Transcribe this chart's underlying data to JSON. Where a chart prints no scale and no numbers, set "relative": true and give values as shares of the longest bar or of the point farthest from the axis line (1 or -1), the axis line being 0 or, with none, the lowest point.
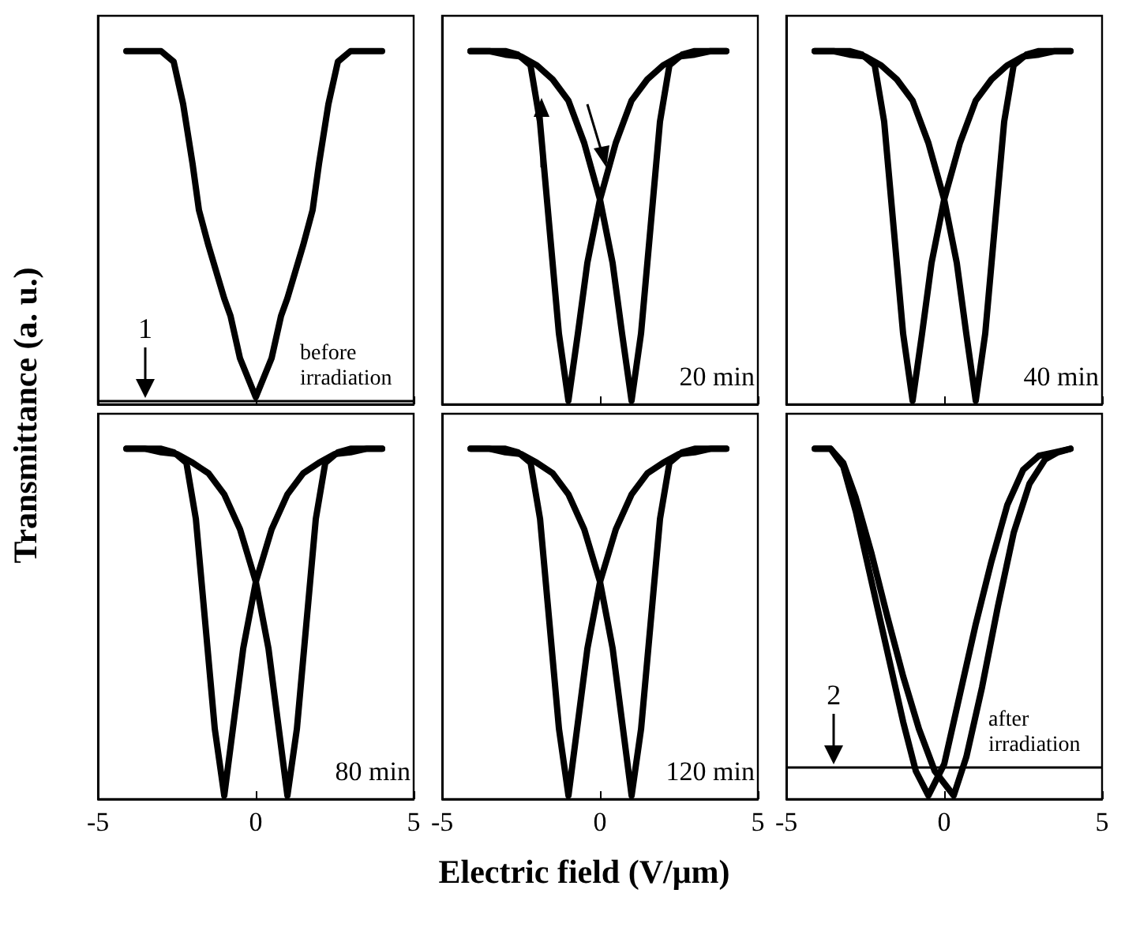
{
  "chart_data": [
    {
      "type": "line",
      "relative": true,
      "xlim": [
        -5,
        5
      ],
      "xticks": [
        -5,
        0,
        5
      ],
      "tick_labels": false,
      "ylabel": "Transmittance (a. u.)",
      "ref_lines": [
        {
          "axis": "y",
          "value": 0.01
        }
      ],
      "annotations": [
        {
          "text": "1",
          "x": -3.5,
          "y": 0.01
        },
        "before irradiation"
      ],
      "series": [
        {
          "color": "#000000",
          "x": [
            -4.1,
            -3.5,
            -3,
            -2.6,
            -2.3,
            -2.0,
            -1.8,
            -1.5,
            -1.0,
            -0.8,
            -0.5,
            0,
            0.5,
            0.8,
            1.0,
            1.5,
            1.8,
            2.0,
            2.3,
            2.6,
            3,
            3.5,
            4.0
          ],
          "values": [
            1,
            1,
            1,
            0.97,
            0.85,
            0.68,
            0.55,
            0.45,
            0.3,
            0.25,
            0.13,
            0.02,
            0.13,
            0.25,
            0.3,
            0.45,
            0.55,
            0.68,
            0.85,
            0.97,
            1,
            1,
            1
          ]
        }
      ]
    },
    {
      "type": "line",
      "relative": true,
      "xlim": [
        -5,
        5
      ],
      "xticks": [
        -5,
        0,
        5
      ],
      "tick_labels": false,
      "annotations": [
        "20 min"
      ],
      "series": [
        {
          "color": "#000000",
          "x": [
            -4.1,
            -3.5,
            -3,
            -2.6,
            -2.2,
            -1.9,
            -1.6,
            -1.3,
            -1,
            -0.7,
            -0.4,
            0,
            0.5,
            1,
            1.5,
            2,
            2.5,
            3,
            3.5,
            4
          ],
          "values": [
            1,
            1,
            1,
            0.99,
            0.96,
            0.8,
            0.5,
            0.2,
            0.01,
            0.2,
            0.4,
            0.58,
            0.74,
            0.86,
            0.92,
            0.96,
            0.985,
            0.99,
            1,
            1
          ]
        },
        {
          "color": "#000000",
          "x": [
            -4.1,
            -3.5,
            -3,
            -2.5,
            -2,
            -1.5,
            -1,
            -0.5,
            0,
            0.4,
            0.7,
            1,
            1.3,
            1.6,
            1.9,
            2.2,
            2.6,
            3,
            3.5,
            4
          ],
          "values": [
            1,
            1,
            0.99,
            0.985,
            0.96,
            0.92,
            0.86,
            0.74,
            0.58,
            0.4,
            0.2,
            0.01,
            0.2,
            0.5,
            0.8,
            0.96,
            0.99,
            1,
            1,
            1
          ]
        }
      ]
    },
    {
      "type": "line",
      "relative": true,
      "xlim": [
        -5,
        5
      ],
      "xticks": [
        -5,
        0,
        5
      ],
      "tick_labels": false,
      "annotations": [
        "40 min"
      ],
      "series": [
        {
          "color": "#000000",
          "x": [
            -4.1,
            -3.5,
            -3,
            -2.6,
            -2.2,
            -1.9,
            -1.6,
            -1.3,
            -1,
            -0.7,
            -0.4,
            0,
            0.5,
            1,
            1.5,
            2,
            2.5,
            3,
            3.5,
            4
          ],
          "values": [
            1,
            1,
            1,
            0.99,
            0.96,
            0.8,
            0.5,
            0.2,
            0.01,
            0.2,
            0.4,
            0.58,
            0.74,
            0.86,
            0.92,
            0.96,
            0.985,
            0.99,
            1,
            1
          ]
        },
        {
          "color": "#000000",
          "x": [
            -4.1,
            -3.5,
            -3,
            -2.5,
            -2,
            -1.5,
            -1,
            -0.5,
            0,
            0.4,
            0.7,
            1,
            1.3,
            1.6,
            1.9,
            2.2,
            2.6,
            3,
            3.5,
            4
          ],
          "values": [
            1,
            1,
            0.99,
            0.985,
            0.96,
            0.92,
            0.86,
            0.74,
            0.58,
            0.4,
            0.2,
            0.01,
            0.2,
            0.5,
            0.8,
            0.96,
            0.99,
            1,
            1,
            1
          ]
        }
      ]
    },
    {
      "type": "line",
      "relative": true,
      "xlim": [
        -5,
        5
      ],
      "xticks": [
        -5,
        0,
        5
      ],
      "tick_labels": "x",
      "annotations": [
        "80 min"
      ],
      "series": [
        {
          "color": "#000000",
          "x": [
            -4.1,
            -3.5,
            -3,
            -2.6,
            -2.2,
            -1.9,
            -1.6,
            -1.3,
            -1,
            -0.7,
            -0.4,
            0,
            0.5,
            1,
            1.5,
            2,
            2.5,
            3,
            3.5,
            4
          ],
          "values": [
            1,
            1,
            1,
            0.99,
            0.96,
            0.8,
            0.5,
            0.2,
            0.01,
            0.22,
            0.43,
            0.62,
            0.77,
            0.87,
            0.93,
            0.96,
            0.985,
            0.99,
            1,
            1
          ]
        },
        {
          "color": "#000000",
          "x": [
            -4.1,
            -3.5,
            -3,
            -2.5,
            -2,
            -1.5,
            -1,
            -0.5,
            0,
            0.4,
            0.7,
            1,
            1.3,
            1.6,
            1.9,
            2.2,
            2.6,
            3,
            3.5,
            4
          ],
          "values": [
            1,
            1,
            0.99,
            0.985,
            0.96,
            0.93,
            0.87,
            0.77,
            0.62,
            0.43,
            0.22,
            0.01,
            0.2,
            0.5,
            0.8,
            0.96,
            0.99,
            1,
            1,
            1
          ]
        }
      ]
    },
    {
      "type": "line",
      "relative": true,
      "xlim": [
        -5,
        5
      ],
      "xticks": [
        -5,
        0,
        5
      ],
      "tick_labels": "x",
      "xlabel": "Electric field (V/μm)",
      "annotations": [
        "120 min"
      ],
      "series": [
        {
          "color": "#000000",
          "x": [
            -4.1,
            -3.5,
            -3,
            -2.6,
            -2.2,
            -1.9,
            -1.6,
            -1.3,
            -1,
            -0.7,
            -0.4,
            0,
            0.5,
            1,
            1.5,
            2,
            2.5,
            3,
            3.5,
            4
          ],
          "values": [
            1,
            1,
            1,
            0.99,
            0.96,
            0.8,
            0.5,
            0.2,
            0.01,
            0.22,
            0.43,
            0.62,
            0.77,
            0.87,
            0.93,
            0.96,
            0.985,
            0.99,
            1,
            1
          ]
        },
        {
          "color": "#000000",
          "x": [
            -4.1,
            -3.5,
            -3,
            -2.5,
            -2,
            -1.5,
            -1,
            -0.5,
            0,
            0.4,
            0.7,
            1,
            1.3,
            1.6,
            1.9,
            2.2,
            2.6,
            3,
            3.5,
            4
          ],
          "values": [
            1,
            1,
            0.99,
            0.985,
            0.96,
            0.93,
            0.87,
            0.77,
            0.62,
            0.43,
            0.22,
            0.01,
            0.2,
            0.5,
            0.8,
            0.96,
            0.99,
            1,
            1,
            1
          ]
        }
      ]
    },
    {
      "type": "line",
      "relative": true,
      "xlim": [
        -5,
        5
      ],
      "xticks": [
        -5,
        0,
        5
      ],
      "tick_labels": "x",
      "ref_lines": [
        {
          "axis": "y",
          "value": 0.09
        }
      ],
      "annotations": [
        {
          "text": "2",
          "x": -3.5,
          "y": 0.09
        },
        "after irradiation"
      ],
      "series": [
        {
          "color": "#000000",
          "x": [
            -4.1,
            -3.6,
            -3.2,
            -2.8,
            -2.3,
            -1.8,
            -1.3,
            -0.9,
            -0.5,
            0,
            0.5,
            1,
            1.5,
            2,
            2.5,
            3,
            3.5,
            4
          ],
          "values": [
            1,
            1,
            0.95,
            0.82,
            0.62,
            0.42,
            0.22,
            0.08,
            0.01,
            0.1,
            0.3,
            0.5,
            0.68,
            0.84,
            0.94,
            0.98,
            0.99,
            1
          ]
        },
        {
          "color": "#000000",
          "x": [
            -4.1,
            -3.6,
            -3.2,
            -2.8,
            -2.3,
            -1.8,
            -1.3,
            -0.8,
            -0.3,
            0.3,
            0.7,
            1.2,
            1.7,
            2.2,
            2.7,
            3.2,
            3.6,
            4
          ],
          "values": [
            1,
            1,
            0.96,
            0.86,
            0.7,
            0.52,
            0.35,
            0.2,
            0.08,
            0.01,
            0.12,
            0.32,
            0.55,
            0.76,
            0.9,
            0.97,
            0.99,
            1
          ]
        }
      ]
    }
  ]
}
